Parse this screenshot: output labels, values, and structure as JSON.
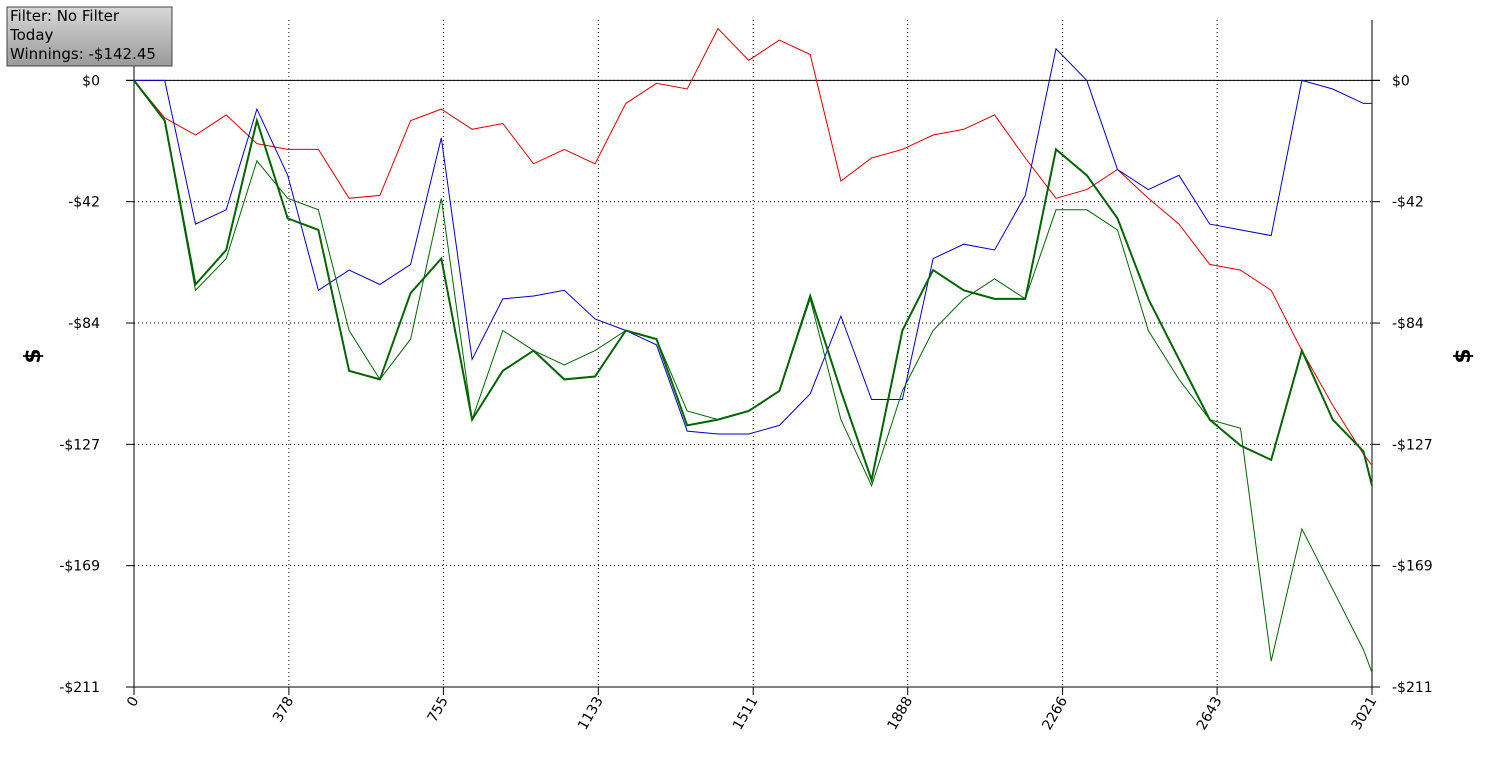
{
  "chart_data": {
    "type": "line",
    "annotations": [
      "Filter: No Filter",
      "Today",
      "Winnings: -$142.45"
    ],
    "ylabel": "$",
    "x": [
      0,
      75,
      150,
      225,
      300,
      375,
      450,
      525,
      600,
      675,
      750,
      825,
      900,
      975,
      1050,
      1125,
      1200,
      1275,
      1350,
      1425,
      1500,
      1575,
      1650,
      1725,
      1800,
      1875,
      1950,
      2025,
      2100,
      2175,
      2250,
      2325,
      2400,
      2475,
      2550,
      2625,
      2700,
      2775,
      2850,
      2925,
      3000,
      3021
    ],
    "series": [
      {
        "color": "#e00000",
        "line_width": 1,
        "values": [
          0,
          -13,
          -19,
          -12,
          -22,
          -24,
          -24,
          -41,
          -40,
          -14,
          -10,
          -17,
          -15,
          -29,
          -24,
          -29,
          -8,
          -1,
          -3,
          18,
          7,
          14,
          9,
          -35,
          -27,
          -24,
          -19,
          -17,
          -12,
          -27,
          -41,
          -38,
          -31,
          -41,
          -50,
          -64,
          -66,
          -73,
          -94,
          -113,
          -130,
          -134
        ]
      },
      {
        "color": "#0000cc",
        "line_width": 1,
        "values": [
          0,
          0,
          -50,
          -45,
          -10,
          -33,
          -73,
          -66,
          -71,
          -64,
          -20,
          -97,
          -76,
          -75,
          -73,
          -83,
          -87,
          -92,
          -122,
          -123,
          -123,
          -120,
          -109,
          -82,
          -111,
          -111,
          -62,
          -57,
          -59,
          -40,
          11,
          0,
          -31,
          -38,
          -33,
          -50,
          -52,
          -54,
          0,
          -3,
          -8,
          -8
        ]
      },
      {
        "color": "#006400",
        "line_width": 2,
        "values": [
          0,
          -14,
          -71,
          -59,
          -14,
          -48,
          -52,
          -101,
          -104,
          -74,
          -62,
          -118,
          -101,
          -94,
          -104,
          -103,
          -87,
          -90,
          -120,
          -118,
          -115,
          -108,
          -75,
          -108,
          -139,
          -87,
          -66,
          -73,
          -76,
          -76,
          -24,
          -33,
          -48,
          -76,
          -97,
          -118,
          -127,
          -132,
          -94,
          -118,
          -129,
          -141
        ]
      },
      {
        "color": "#006400",
        "line_width": 1,
        "values": [
          0,
          -14,
          -73,
          -62,
          -28,
          -41,
          -45,
          -87,
          -104,
          -90,
          -41,
          -118,
          -87,
          -94,
          -99,
          -94,
          -87,
          -90,
          -115,
          -118,
          -115,
          -108,
          -76,
          -118,
          -141,
          -108,
          -87,
          -76,
          -69,
          -76,
          -45,
          -45,
          -52,
          -87,
          -104,
          -118,
          -121,
          -202,
          -156,
          -177,
          -198,
          -206
        ]
      }
    ],
    "xlim": [
      0,
      3021
    ],
    "xticks": [
      0,
      378,
      755,
      1133,
      1511,
      1888,
      2266,
      2643,
      3021
    ],
    "ylim": [
      -211,
      21
    ],
    "yticks": [
      {
        "value": 0,
        "label": "$0"
      },
      {
        "value": -42.2,
        "label": "-$42"
      },
      {
        "value": -84.4,
        "label": "-$84"
      },
      {
        "value": -126.6,
        "label": "-$127"
      },
      {
        "value": -168.8,
        "label": "-$169"
      },
      {
        "value": -211,
        "label": "-$211"
      }
    ],
    "grid": true,
    "zero_line": true
  }
}
